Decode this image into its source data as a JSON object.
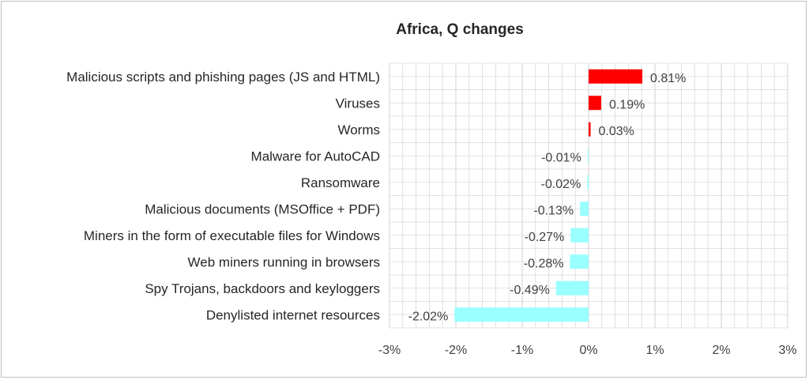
{
  "chart_data": {
    "type": "bar",
    "orientation": "horizontal",
    "title": "Africa, Q changes",
    "categories": [
      "Malicious scripts and phishing pages (JS and HTML)",
      "Viruses",
      "Worms",
      "Malware for AutoCAD",
      "Ransomware",
      "Malicious documents (MSOffice + PDF)",
      "Miners in the form of executable files for Windows",
      "Web miners running in browsers",
      "Spy Trojans, backdoors and keyloggers",
      "Denylisted internet resources"
    ],
    "values": [
      0.81,
      0.19,
      0.03,
      -0.01,
      -0.02,
      -0.13,
      -0.27,
      -0.28,
      -0.49,
      -2.02
    ],
    "value_labels": [
      "0.81%",
      "0.19%",
      "0.03%",
      "-0.01%",
      "-0.02%",
      "-0.13%",
      "-0.27%",
      "-0.28%",
      "-0.49%",
      "-2.02%"
    ],
    "xlim": [
      -3,
      3
    ],
    "x_ticks": [
      -3,
      -2,
      -1,
      0,
      1,
      2,
      3
    ],
    "x_tick_labels": [
      "-3%",
      "-2%",
      "-1%",
      "0%",
      "1%",
      "2%",
      "3%"
    ],
    "grid": true,
    "colors": {
      "positive": "#ff0000",
      "negative": "#99ffff",
      "grid": "#d9d9d9",
      "text": "#262626"
    }
  }
}
